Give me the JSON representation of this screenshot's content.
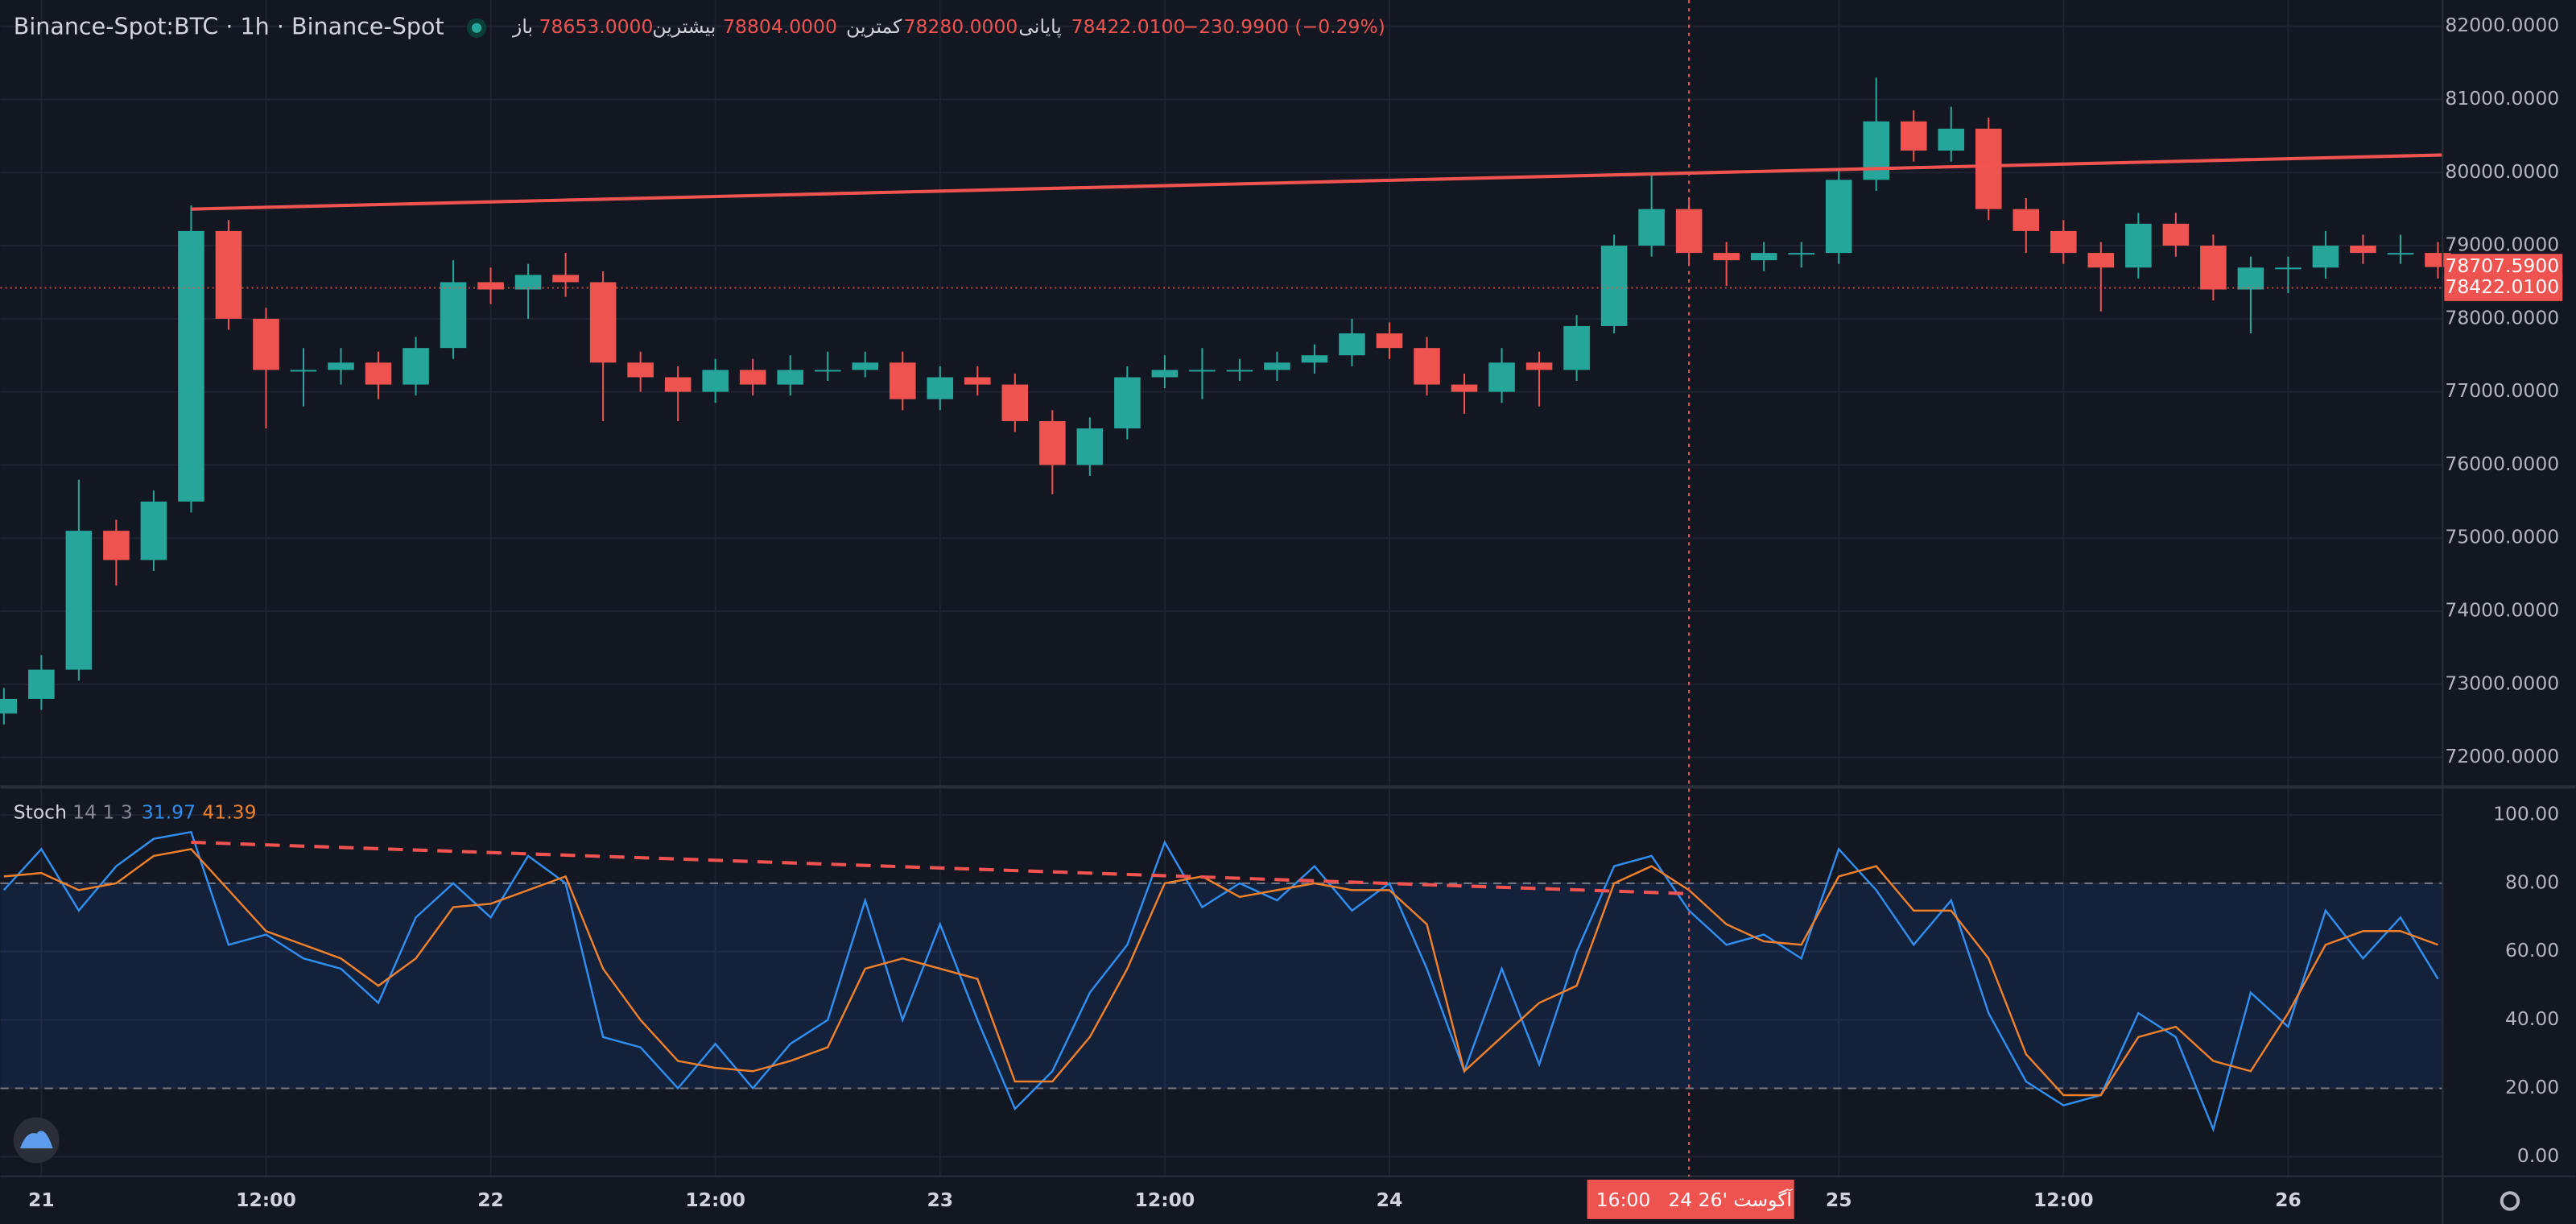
{
  "chart_data": [
    {
      "type": "candlestick",
      "title": "Binance-Spot:BTC · 1h · Binance-Spot",
      "ohlc": [
        {
          "label": "باز",
          "value": "78653.0000"
        },
        {
          "label": "بیشترین",
          "value": "78804.0000"
        },
        {
          "label": "کمترین",
          "value": "78280.0000"
        },
        {
          "label": "پایانی",
          "value": "78422.0100"
        }
      ],
      "change": "−230.9900 (−0.29%)",
      "up_color": "#26a69a",
      "down_color": "#ef5350",
      "x": [
        -2,
        0,
        2,
        4,
        6,
        8,
        10,
        12,
        14,
        16,
        18,
        20,
        22,
        24,
        26,
        28,
        30,
        32,
        34,
        36,
        38,
        40,
        42,
        44,
        46,
        48,
        50,
        52,
        54,
        56,
        58,
        60,
        62,
        64,
        66,
        68,
        70,
        72,
        74,
        76,
        78,
        80,
        82,
        84,
        86,
        88,
        90,
        92,
        94,
        96,
        98,
        100,
        102,
        104,
        106,
        108,
        110,
        112,
        114,
        116,
        118,
        120,
        122,
        124,
        126,
        128
      ],
      "candles": [
        [
          72600,
          72950,
          72450,
          72800
        ],
        [
          72800,
          73400,
          72650,
          73200
        ],
        [
          73200,
          75800,
          73050,
          75100
        ],
        [
          75100,
          75250,
          74350,
          74700
        ],
        [
          74700,
          75650,
          74550,
          75500
        ],
        [
          75500,
          79550,
          75350,
          79200
        ],
        [
          79200,
          79350,
          77850,
          78000
        ],
        [
          78000,
          78150,
          76500,
          77300
        ],
        [
          77300,
          77600,
          76800,
          77300
        ],
        [
          77300,
          77600,
          77100,
          77400
        ],
        [
          77400,
          77550,
          76900,
          77100
        ],
        [
          77100,
          77750,
          76950,
          77600
        ],
        [
          77600,
          78800,
          77450,
          78500
        ],
        [
          78500,
          78700,
          78200,
          78400
        ],
        [
          78400,
          78750,
          78000,
          78600
        ],
        [
          78600,
          78900,
          78300,
          78500
        ],
        [
          78500,
          78650,
          76600,
          77400
        ],
        [
          77400,
          77550,
          77000,
          77200
        ],
        [
          77200,
          77350,
          76600,
          77000
        ],
        [
          77000,
          77450,
          76850,
          77300
        ],
        [
          77300,
          77450,
          76950,
          77100
        ],
        [
          77100,
          77500,
          76950,
          77300
        ],
        [
          77300,
          77550,
          77150,
          77300
        ],
        [
          77300,
          77550,
          77200,
          77400
        ],
        [
          77400,
          77550,
          76750,
          76900
        ],
        [
          76900,
          77350,
          76750,
          77200
        ],
        [
          77200,
          77350,
          76950,
          77100
        ],
        [
          77100,
          77250,
          76450,
          76600
        ],
        [
          76600,
          76750,
          75600,
          76000
        ],
        [
          76000,
          76650,
          75850,
          76500
        ],
        [
          76500,
          77350,
          76350,
          77200
        ],
        [
          77200,
          77500,
          77050,
          77300
        ],
        [
          77300,
          77600,
          76900,
          77300
        ],
        [
          77300,
          77450,
          77150,
          77300
        ],
        [
          77300,
          77550,
          77150,
          77400
        ],
        [
          77400,
          77650,
          77250,
          77500
        ],
        [
          77500,
          78000,
          77350,
          77800
        ],
        [
          77800,
          77950,
          77450,
          77600
        ],
        [
          77600,
          77750,
          76950,
          77100
        ],
        [
          77100,
          77250,
          76700,
          77000
        ],
        [
          77000,
          77600,
          76850,
          77400
        ],
        [
          77400,
          77550,
          76800,
          77300
        ],
        [
          77300,
          78050,
          77150,
          77900
        ],
        [
          77900,
          79150,
          77800,
          79000
        ],
        [
          79000,
          80000,
          78850,
          79500
        ],
        [
          79500,
          79650,
          78750,
          78900
        ],
        [
          78900,
          79050,
          78450,
          78800
        ],
        [
          78800,
          79050,
          78650,
          78900
        ],
        [
          78900,
          79050,
          78700,
          78900
        ],
        [
          78900,
          80050,
          78750,
          79900
        ],
        [
          79900,
          81300,
          79750,
          80700
        ],
        [
          80700,
          80850,
          80150,
          80300
        ],
        [
          80300,
          80900,
          80150,
          80600
        ],
        [
          80600,
          80750,
          79350,
          79500
        ],
        [
          79500,
          79650,
          78900,
          79200
        ],
        [
          79200,
          79350,
          78750,
          78900
        ],
        [
          78900,
          79050,
          78100,
          78700
        ],
        [
          78700,
          79450,
          78550,
          79300
        ],
        [
          79300,
          79450,
          78850,
          79000
        ],
        [
          79000,
          79150,
          78250,
          78400
        ],
        [
          78400,
          78850,
          77800,
          78700
        ],
        [
          78700,
          78850,
          78350,
          78700
        ],
        [
          78700,
          79200,
          78550,
          79000
        ],
        [
          79000,
          79150,
          78750,
          78900
        ],
        [
          78900,
          79150,
          78750,
          78900
        ],
        [
          78900,
          79050,
          78550,
          78707.59
        ]
      ],
      "xlim": [
        -2.19,
        128.25
      ],
      "ylim": [
        71618,
        82360
      ],
      "yticks": [
        {
          "value": 72000,
          "label": "72000.0000"
        },
        {
          "value": 73000,
          "label": "73000.0000"
        },
        {
          "value": 74000,
          "label": "74000.0000"
        },
        {
          "value": 75000,
          "label": "75000.0000"
        },
        {
          "value": 76000,
          "label": "76000.0000"
        },
        {
          "value": 77000,
          "label": "77000.0000"
        },
        {
          "value": 78000,
          "label": "78000.0000"
        },
        {
          "value": 79000,
          "label": "79000.0000"
        },
        {
          "value": 80000,
          "label": "80000.0000"
        },
        {
          "value": 81000,
          "label": "81000.0000"
        },
        {
          "value": 82000,
          "label": "82000.0000"
        }
      ],
      "xticks": [
        {
          "value": 0,
          "label": "21"
        },
        {
          "value": 12,
          "label": "12:00"
        },
        {
          "value": 24,
          "label": "22"
        },
        {
          "value": 36,
          "label": "12:00"
        },
        {
          "value": 48,
          "label": "23"
        },
        {
          "value": 60,
          "label": "12:00"
        },
        {
          "value": 72,
          "label": "24"
        },
        {
          "value": 96,
          "label": "25"
        },
        {
          "value": 108,
          "label": "12:00"
        },
        {
          "value": 120,
          "label": "26"
        }
      ],
      "grid": true,
      "trendline": {
        "x": [
          8,
          128.25
        ],
        "y": [
          79500,
          80240
        ],
        "color": "#f05350"
      },
      "last_price": {
        "value": 78707.59,
        "label": "78707.5900"
      },
      "crosshair": {
        "x": 88,
        "y": 78422.01,
        "price_label": "78422.0100",
        "date_label": "24 آگوست '26",
        "time_label": "16:00"
      }
    },
    {
      "type": "line",
      "title": "Stoch",
      "params": "14 1 3",
      "series": [
        {
          "name": "31.97",
          "color": "#2f8ef0",
          "values": [
            78,
            90,
            72,
            85,
            93,
            95,
            62,
            65,
            58,
            55,
            45,
            70,
            80,
            70,
            88,
            80,
            35,
            32,
            20,
            33,
            20,
            33,
            40,
            75,
            40,
            68,
            40,
            14,
            25,
            48,
            62,
            92,
            73,
            80,
            75,
            85,
            72,
            80,
            55,
            25,
            55,
            27,
            60,
            85,
            88,
            72,
            62,
            65,
            58,
            90,
            78,
            62,
            75,
            42,
            22,
            15,
            18,
            42,
            35,
            8,
            48,
            38,
            72,
            58,
            70,
            52
          ]
        },
        {
          "name": "41.39",
          "color": "#f0802a",
          "values": [
            82,
            83,
            78,
            80,
            88,
            90,
            78,
            66,
            62,
            58,
            50,
            58,
            73,
            74,
            78,
            82,
            55,
            40,
            28,
            26,
            25,
            28,
            32,
            55,
            58,
            55,
            52,
            22,
            22,
            35,
            55,
            80,
            82,
            76,
            78,
            80,
            78,
            78,
            68,
            25,
            35,
            45,
            50,
            80,
            85,
            78,
            68,
            63,
            62,
            82,
            85,
            72,
            72,
            58,
            30,
            18,
            18,
            35,
            38,
            28,
            25,
            42,
            62,
            66,
            66,
            62
          ]
        }
      ],
      "ylim": [
        -5.77,
        107.7
      ],
      "yticks": [
        {
          "value": 0,
          "label": "0.00"
        },
        {
          "value": 20,
          "label": "20.00"
        },
        {
          "value": 40,
          "label": "40.00"
        },
        {
          "value": 60,
          "label": "60.00"
        },
        {
          "value": 80,
          "label": "80.00"
        },
        {
          "value": 100,
          "label": "100.00"
        }
      ],
      "band": [
        20,
        80
      ],
      "trendline": {
        "x": [
          8,
          87.7
        ],
        "y": [
          92,
          77
        ],
        "color": "#f05350"
      }
    }
  ]
}
